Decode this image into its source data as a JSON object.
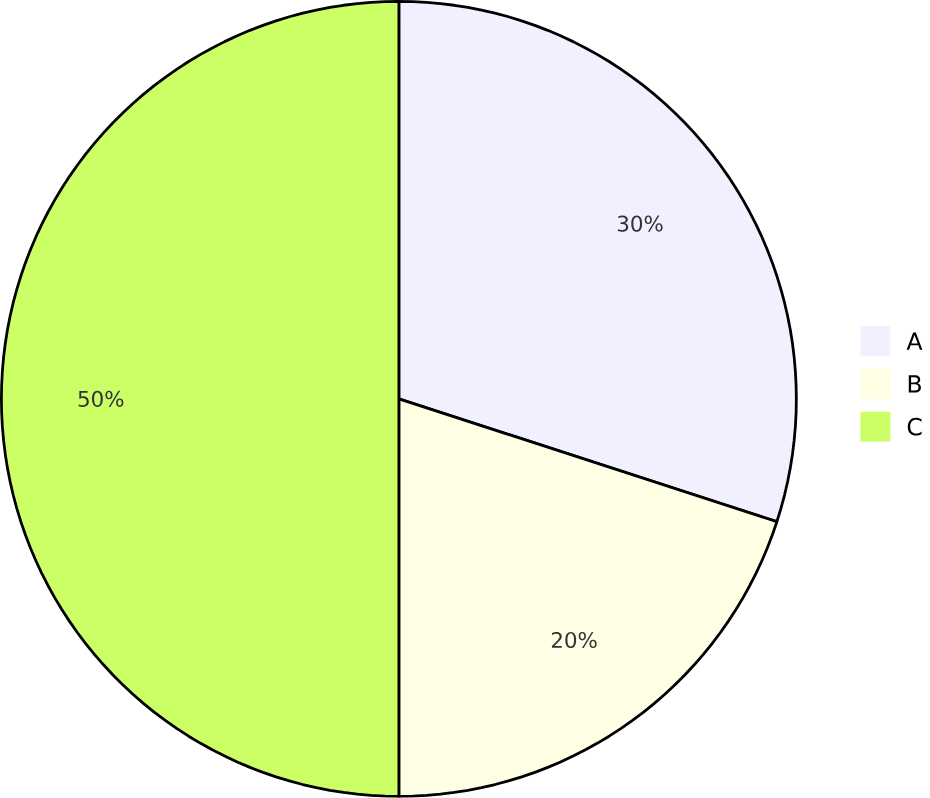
{
  "chart_data": {
    "type": "pie",
    "categories": [
      "A",
      "B",
      "C"
    ],
    "values": [
      30,
      20,
      50
    ],
    "colors": [
      "#f0f0ff",
      "#ffffe6",
      "#ccff66"
    ],
    "value_labels": [
      "30%",
      "20%",
      "50%"
    ],
    "legend": "right"
  }
}
